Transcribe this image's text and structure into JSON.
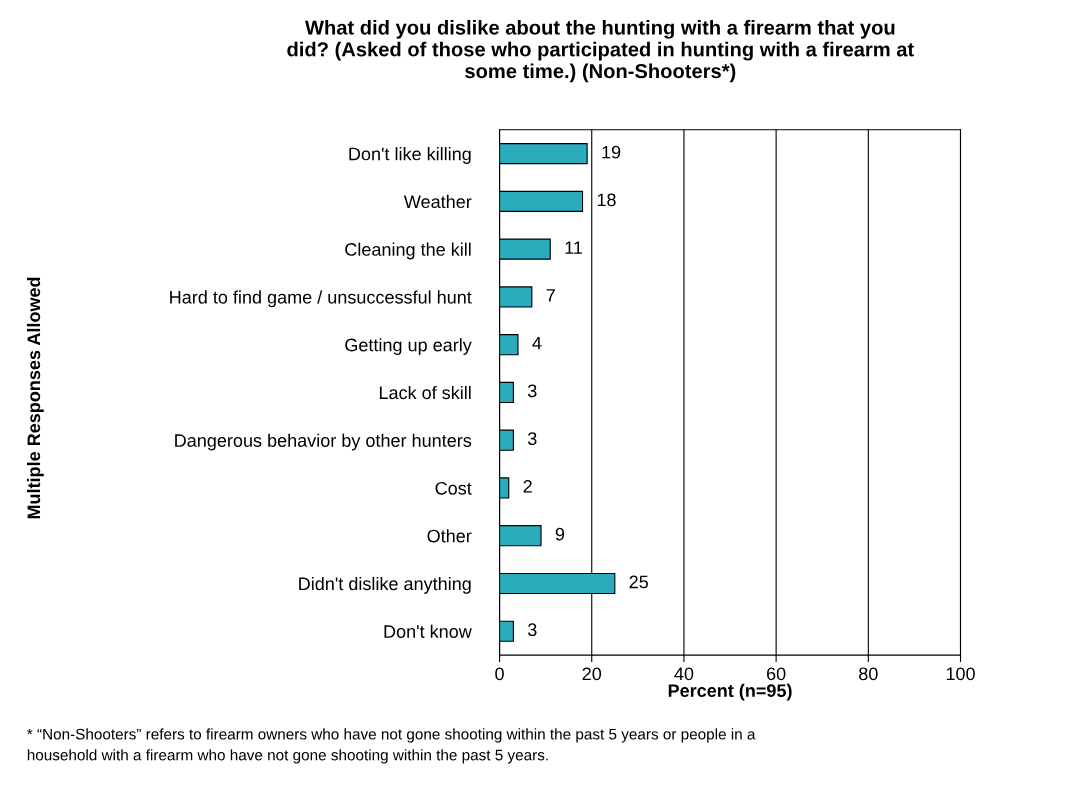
{
  "chart_data": {
    "type": "bar",
    "orientation": "horizontal",
    "title": "What did you dislike about the hunting with a firearm that you\ndid? (Asked of those who participated in hunting with a firearm at\nsome time.) (Non-Shooters*)",
    "categories": [
      "Don't like killing",
      "Weather",
      "Cleaning the kill",
      "Hard to find game / unsuccessful hunt",
      "Getting up early",
      "Lack of skill",
      "Dangerous behavior by other hunters",
      "Cost",
      "Other",
      "Didn't dislike anything",
      "Don't know"
    ],
    "values": [
      19,
      18,
      11,
      7,
      4,
      3,
      3,
      2,
      9,
      25,
      3
    ],
    "color": "#2aacbc",
    "xlim": [
      0,
      100
    ],
    "xticks": [
      0,
      20,
      40,
      60,
      80,
      100
    ],
    "xlabel": "Percent (n=95)",
    "grid": "x",
    "data_labels": true,
    "legend": false,
    "annotations": [
      "Multiple Responses Allowed",
      "* “Non-Shooters” refers to firearm owners who have not gone shooting within the past 5 years or people in a\nhousehold with a firearm who have not gone shooting within the past 5 years."
    ]
  }
}
